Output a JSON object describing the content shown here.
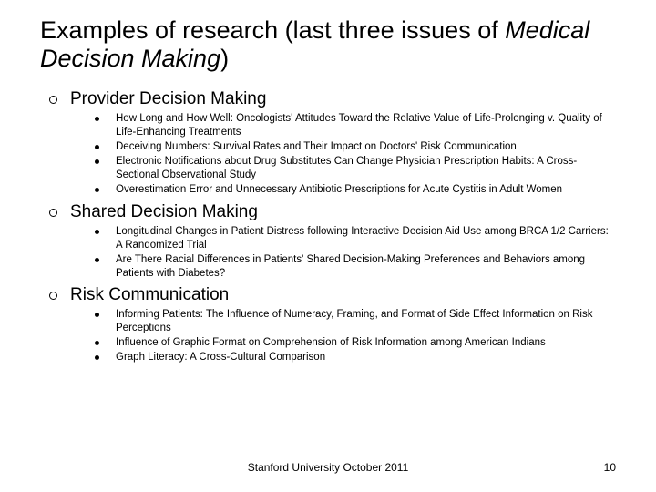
{
  "title_part1": "Examples of research (last three issues of ",
  "title_italic": "Medical Decision Making",
  "title_part2": ")",
  "sections": [
    {
      "heading": "Provider Decision Making",
      "items": [
        "How Long and How Well: Oncologists' Attitudes Toward the Relative Value of Life-Prolonging v. Quality of Life-Enhancing Treatments",
        "Deceiving Numbers: Survival Rates and Their Impact on Doctors' Risk Communication",
        "Electronic Notifications about Drug Substitutes Can Change Physician Prescription Habits: A Cross-Sectional Observational Study",
        "Overestimation Error and Unnecessary Antibiotic Prescriptions for Acute Cystitis in Adult Women"
      ]
    },
    {
      "heading": "Shared Decision Making",
      "items": [
        "Longitudinal Changes in Patient Distress following Interactive Decision Aid Use among BRCA 1/2 Carriers: A Randomized Trial",
        "Are There Racial Differences in Patients' Shared Decision-Making Preferences and Behaviors among Patients with Diabetes?"
      ]
    },
    {
      "heading": "Risk Communication",
      "items": [
        "Informing Patients: The Influence of Numeracy, Framing, and Format of Side Effect Information on Risk Perceptions",
        "Influence of Graphic Format on Comprehension of Risk Information among American Indians",
        "Graph Literacy: A Cross-Cultural Comparison"
      ]
    }
  ],
  "footer": "Stanford University October 2011",
  "page_number": "10",
  "colors": {
    "background": "#ffffff",
    "text": "#000000"
  }
}
